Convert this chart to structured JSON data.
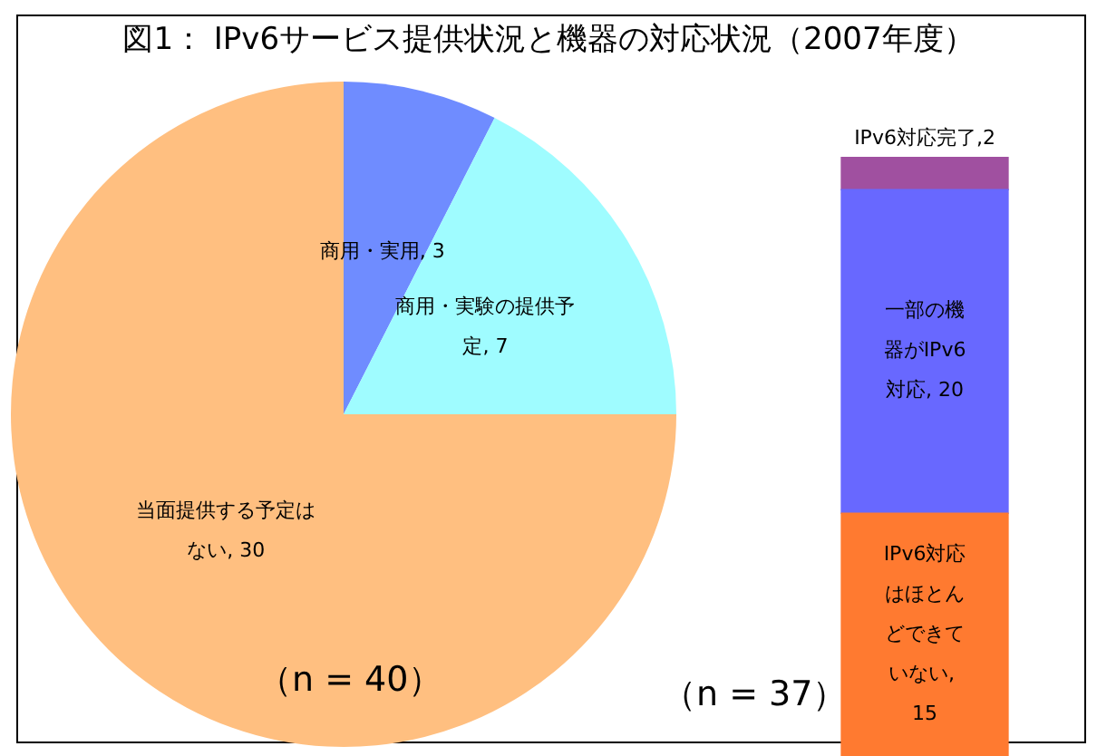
{
  "chart_data": [
    {
      "type": "pie",
      "title": "図1：  IPv6サービス提供状況と機器の対応状況（2007年度）",
      "categories": [
        null,
        null,
        null
      ],
      "values": [
        3,
        7,
        30
      ],
      "value_labels": [
        "商用・実用, 3",
        "商用・実験の提供予定, 7",
        "当面提供する予定はない, 30"
      ],
      "colors": [
        "#6f8cff",
        "#9ffcff",
        "#ffbf80"
      ],
      "legend": false,
      "annotations": [
        "（n = 40）"
      ]
    },
    {
      "type": "bar",
      "stacked": true,
      "categories": [
        null
      ],
      "series": [
        {
          "color": "#ff7a30",
          "values": [
            15
          ],
          "value_labels": [
            "IPv6対応はほとんどできていない, 15"
          ]
        },
        {
          "color": "#6868ff",
          "values": [
            20
          ],
          "value_labels": [
            "一部の機器がIPv6対応, 20"
          ]
        },
        {
          "color": "#a050a0",
          "values": [
            2
          ],
          "value_labels": [
            "IPv6対応完了,2"
          ]
        }
      ],
      "legend": false,
      "annotations": [
        "（n = 37）"
      ]
    }
  ]
}
